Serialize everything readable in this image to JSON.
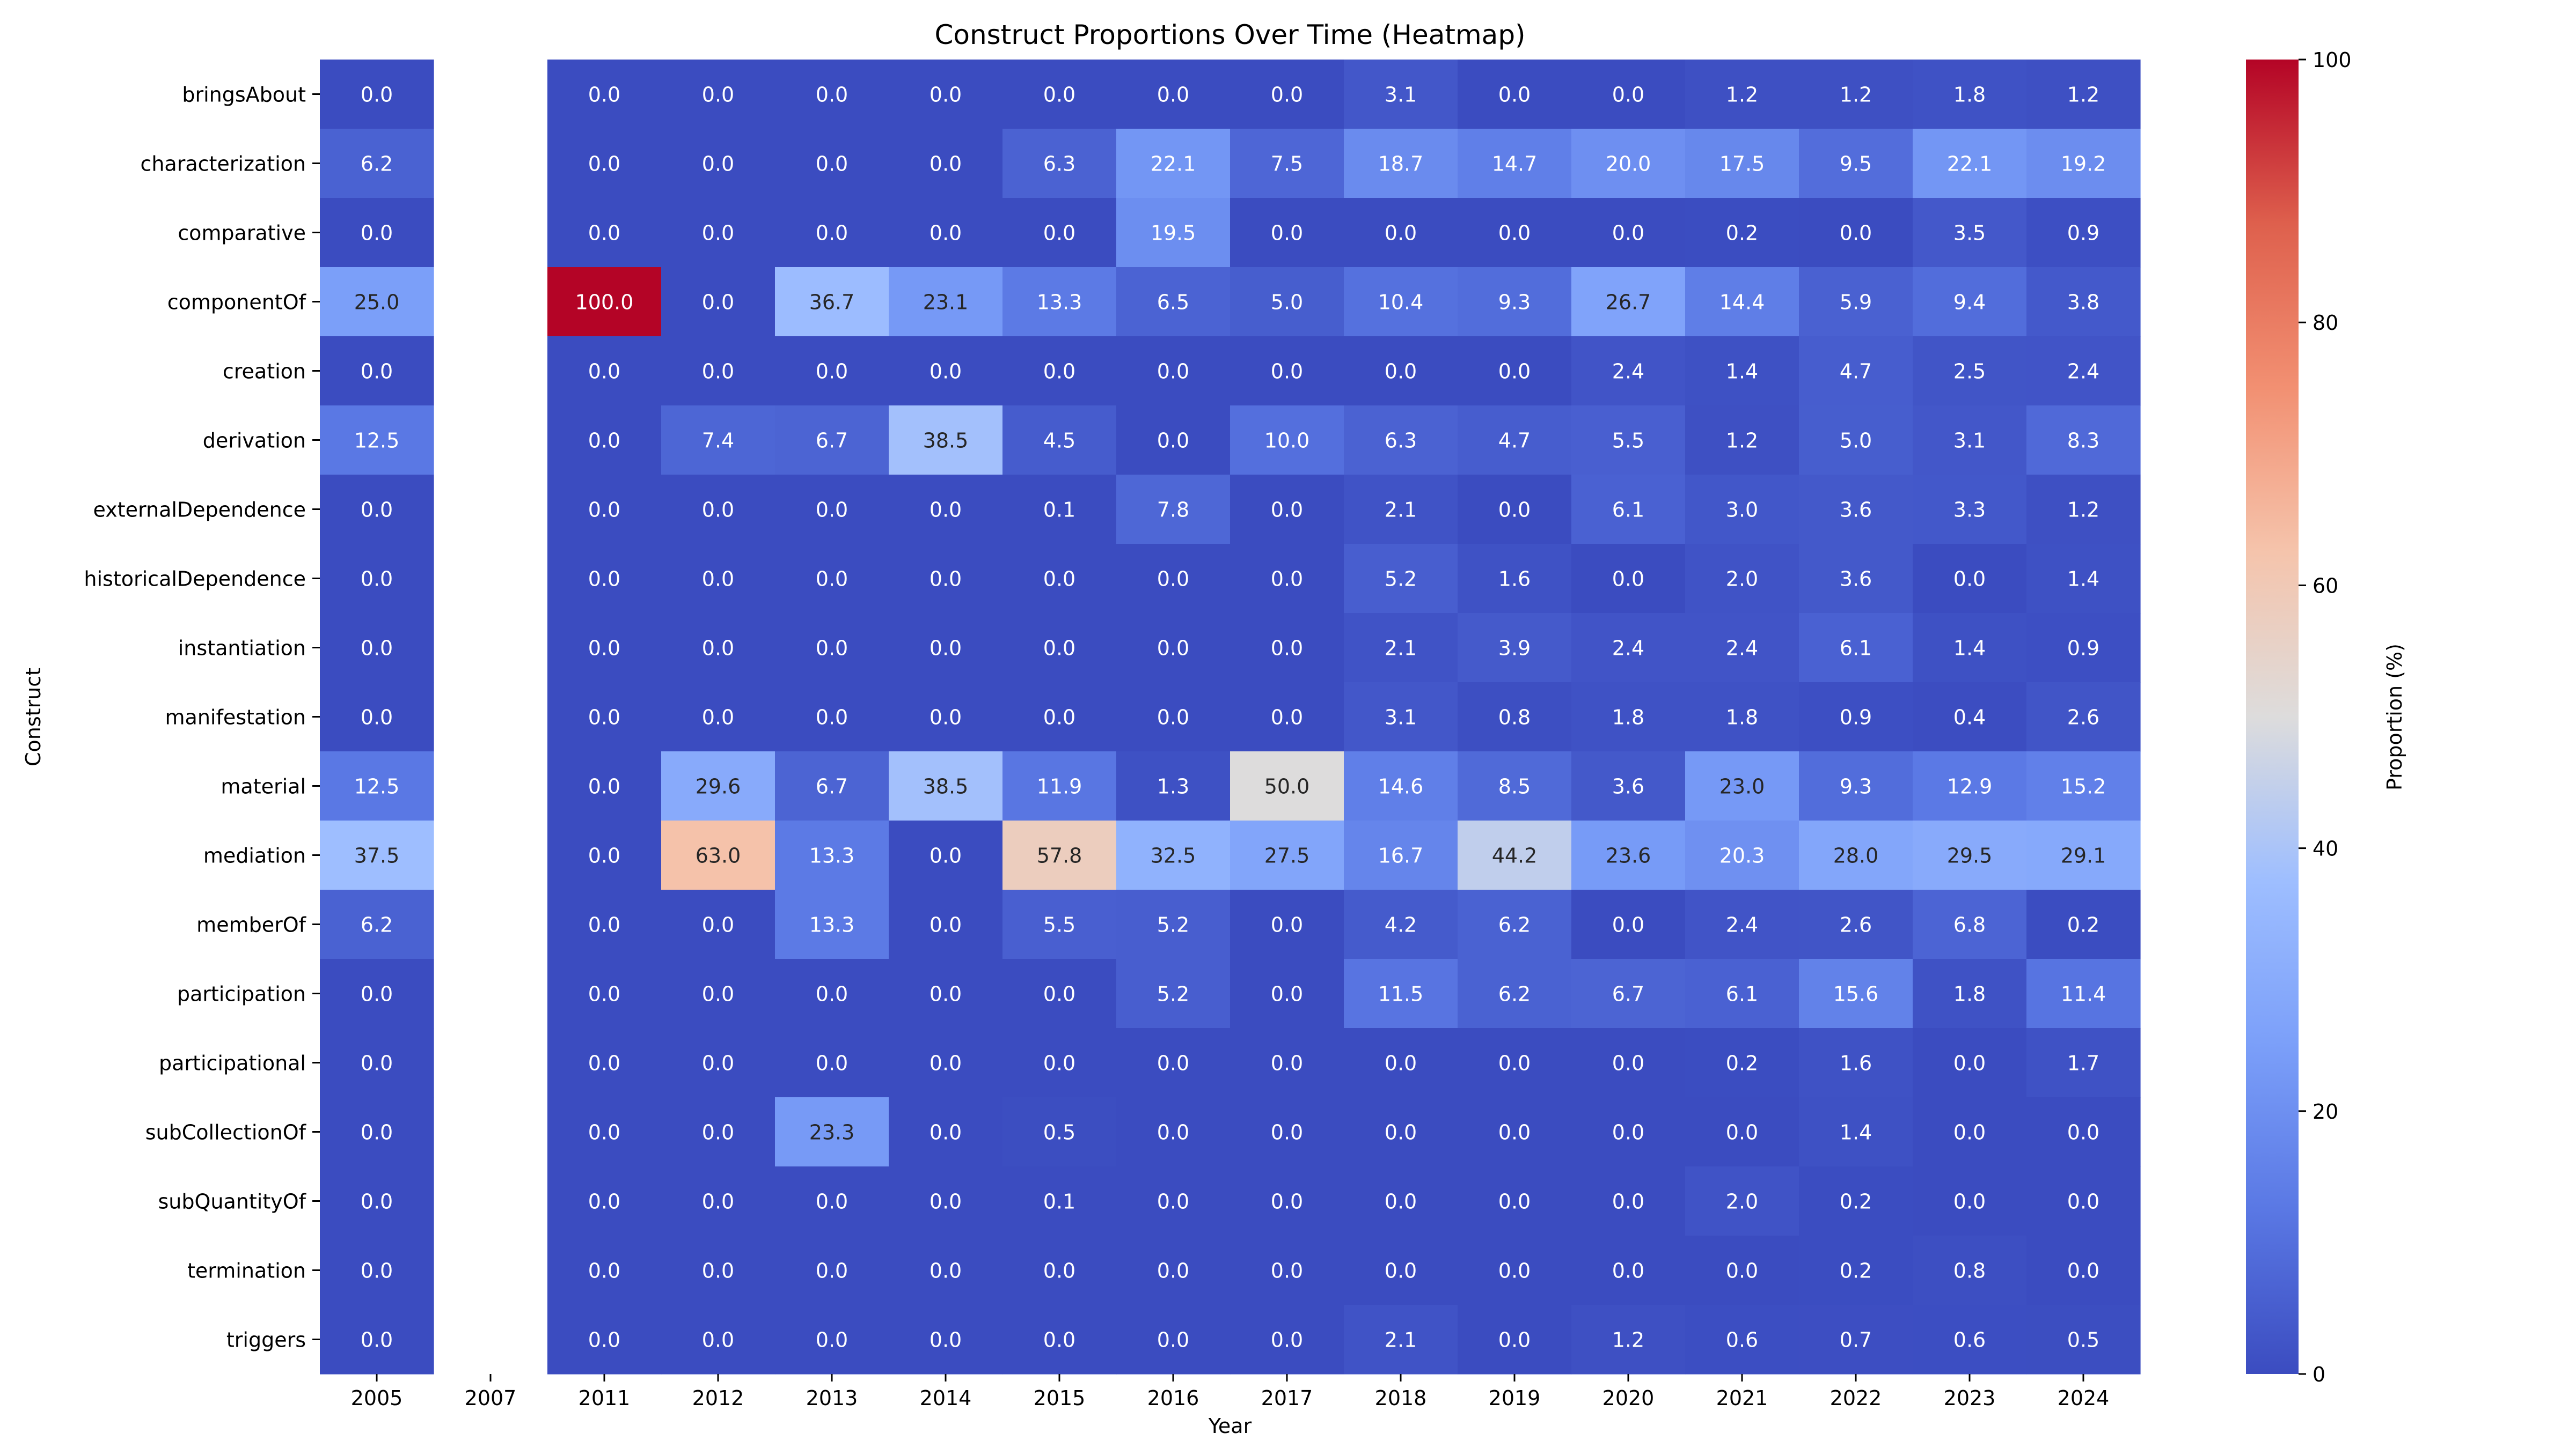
{
  "chart_data": {
    "type": "heatmap",
    "title": "Construct Proportions Over Time (Heatmap)",
    "xlabel": "Year",
    "ylabel": "Construct",
    "colorbar_label": "Proportion (%)",
    "colormap": "coolwarm",
    "vmin": 0,
    "vmax": 100,
    "colorbar_ticks": [
      "0",
      "20",
      "40",
      "60",
      "80",
      "100"
    ],
    "x": [
      "2005",
      "2007",
      "2011",
      "2012",
      "2013",
      "2014",
      "2015",
      "2016",
      "2017",
      "2018",
      "2019",
      "2020",
      "2021",
      "2022",
      "2023",
      "2024"
    ],
    "y": [
      "bringsAbout",
      "characterization",
      "comparative",
      "componentOf",
      "creation",
      "derivation",
      "externalDependence",
      "historicalDependence",
      "instantiation",
      "manifestation",
      "material",
      "mediation",
      "memberOf",
      "participation",
      "participational",
      "subCollectionOf",
      "subQuantityOf",
      "termination",
      "triggers"
    ],
    "values": [
      [
        0.0,
        null,
        0.0,
        0.0,
        0.0,
        0.0,
        0.0,
        0.0,
        0.0,
        3.1,
        0.0,
        0.0,
        1.2,
        1.2,
        1.8,
        1.2
      ],
      [
        6.2,
        null,
        0.0,
        0.0,
        0.0,
        0.0,
        6.3,
        22.1,
        7.5,
        18.7,
        14.7,
        20.0,
        17.5,
        9.5,
        22.1,
        19.2
      ],
      [
        0.0,
        null,
        0.0,
        0.0,
        0.0,
        0.0,
        0.0,
        19.5,
        0.0,
        0.0,
        0.0,
        0.0,
        0.2,
        0.0,
        3.5,
        0.9
      ],
      [
        25.0,
        null,
        100.0,
        0.0,
        36.7,
        23.1,
        13.3,
        6.5,
        5.0,
        10.4,
        9.3,
        26.7,
        14.4,
        5.9,
        9.4,
        3.8
      ],
      [
        0.0,
        null,
        0.0,
        0.0,
        0.0,
        0.0,
        0.0,
        0.0,
        0.0,
        0.0,
        0.0,
        2.4,
        1.4,
        4.7,
        2.5,
        2.4
      ],
      [
        12.5,
        null,
        0.0,
        7.4,
        6.7,
        38.5,
        4.5,
        0.0,
        10.0,
        6.3,
        4.7,
        5.5,
        1.2,
        5.0,
        3.1,
        8.3
      ],
      [
        0.0,
        null,
        0.0,
        0.0,
        0.0,
        0.0,
        0.1,
        7.8,
        0.0,
        2.1,
        0.0,
        6.1,
        3.0,
        3.6,
        3.3,
        1.2
      ],
      [
        0.0,
        null,
        0.0,
        0.0,
        0.0,
        0.0,
        0.0,
        0.0,
        0.0,
        5.2,
        1.6,
        0.0,
        2.0,
        3.6,
        0.0,
        1.4
      ],
      [
        0.0,
        null,
        0.0,
        0.0,
        0.0,
        0.0,
        0.0,
        0.0,
        0.0,
        2.1,
        3.9,
        2.4,
        2.4,
        6.1,
        1.4,
        0.9
      ],
      [
        0.0,
        null,
        0.0,
        0.0,
        0.0,
        0.0,
        0.0,
        0.0,
        0.0,
        3.1,
        0.8,
        1.8,
        1.8,
        0.9,
        0.4,
        2.6
      ],
      [
        12.5,
        null,
        0.0,
        29.6,
        6.7,
        38.5,
        11.9,
        1.3,
        50.0,
        14.6,
        8.5,
        3.6,
        23.0,
        9.3,
        12.9,
        15.2
      ],
      [
        37.5,
        null,
        0.0,
        63.0,
        13.3,
        0.0,
        57.8,
        32.5,
        27.5,
        16.7,
        44.2,
        23.6,
        20.3,
        28.0,
        29.5,
        29.1
      ],
      [
        6.2,
        null,
        0.0,
        0.0,
        13.3,
        0.0,
        5.5,
        5.2,
        0.0,
        4.2,
        6.2,
        0.0,
        2.4,
        2.6,
        6.8,
        0.2
      ],
      [
        0.0,
        null,
        0.0,
        0.0,
        0.0,
        0.0,
        0.0,
        5.2,
        0.0,
        11.5,
        6.2,
        6.7,
        6.1,
        15.6,
        1.8,
        11.4
      ],
      [
        0.0,
        null,
        0.0,
        0.0,
        0.0,
        0.0,
        0.0,
        0.0,
        0.0,
        0.0,
        0.0,
        0.0,
        0.2,
        1.6,
        0.0,
        1.7
      ],
      [
        0.0,
        null,
        0.0,
        0.0,
        23.3,
        0.0,
        0.5,
        0.0,
        0.0,
        0.0,
        0.0,
        0.0,
        0.0,
        1.4,
        0.0,
        0.0
      ],
      [
        0.0,
        null,
        0.0,
        0.0,
        0.0,
        0.0,
        0.1,
        0.0,
        0.0,
        0.0,
        0.0,
        0.0,
        2.0,
        0.2,
        0.0,
        0.0
      ],
      [
        0.0,
        null,
        0.0,
        0.0,
        0.0,
        0.0,
        0.0,
        0.0,
        0.0,
        0.0,
        0.0,
        0.0,
        0.0,
        0.2,
        0.8,
        0.0
      ],
      [
        0.0,
        null,
        0.0,
        0.0,
        0.0,
        0.0,
        0.0,
        0.0,
        0.0,
        2.1,
        0.0,
        1.2,
        0.6,
        0.7,
        0.6,
        0.5
      ]
    ]
  }
}
